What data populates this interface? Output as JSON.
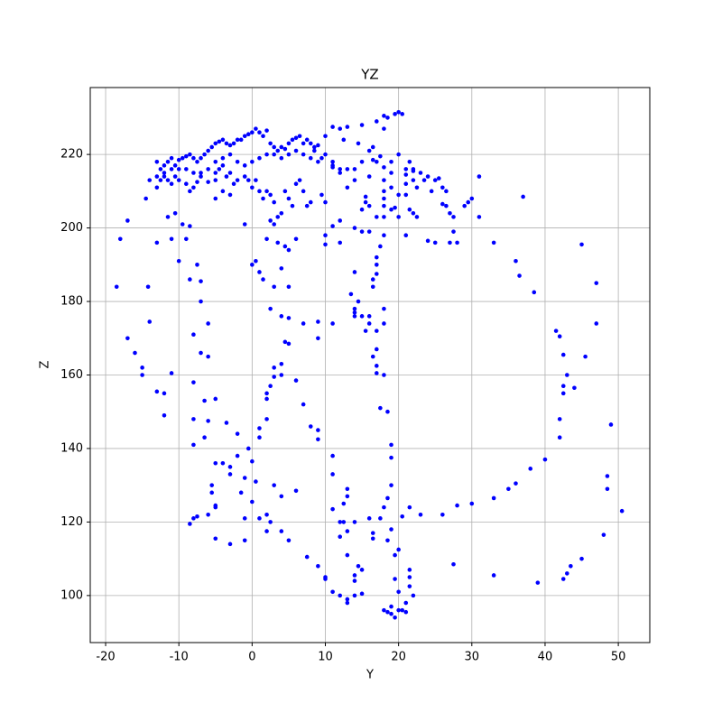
{
  "chart_data": {
    "type": "scatter",
    "title": "YZ",
    "x_label": "Y",
    "y_label": "Z",
    "color": "#0000ff",
    "grid": true,
    "xlim": [
      -22.1,
      54.3
    ],
    "ylim": [
      87.2,
      238.2
    ],
    "xticks": [
      -20,
      -10,
      0,
      10,
      20,
      30,
      40,
      50
    ],
    "yticks": [
      100,
      120,
      140,
      160,
      180,
      200,
      220
    ],
    "x": [
      -18.5,
      -18,
      -17,
      -17,
      -16,
      -15,
      -15,
      -14,
      -14.2,
      -14.5,
      -14,
      -13,
      -13,
      -12,
      -12,
      -11.5,
      -11,
      -11,
      -10.5,
      -10,
      -9.5,
      -9,
      -8.5,
      -8.5,
      -8,
      -8,
      -8,
      -8,
      -7.5,
      -7,
      -7,
      -7,
      -6.5,
      -6.5,
      -6,
      -6,
      -6,
      -5.5,
      -5.5,
      -5,
      -5,
      -5,
      -4,
      -3.5,
      -3,
      -3,
      -2,
      -2,
      -1.5,
      -1,
      -0.5,
      0,
      0,
      0.5,
      1,
      1,
      2,
      2,
      2,
      2.5,
      3,
      3,
      4,
      4,
      4.5,
      5,
      6,
      7,
      8,
      9,
      9,
      9,
      9,
      -8.5,
      -8,
      -7.5,
      -6,
      -5,
      -5,
      -3,
      -1,
      -1,
      1,
      2,
      2.5,
      2,
      3,
      4,
      4,
      5,
      6,
      7.5,
      9,
      10,
      10,
      11,
      12,
      13,
      13,
      14,
      15,
      14.5,
      15,
      14,
      14,
      13,
      12,
      13,
      12.5,
      12.5,
      13,
      13,
      12,
      11,
      11,
      11,
      14,
      16,
      16.5,
      16.5,
      17.5,
      18.5,
      19,
      19.5,
      20,
      19.5,
      20,
      21,
      21.5,
      21.5,
      21.5,
      22,
      18,
      18.5,
      19,
      19.5,
      20,
      20.5,
      21,
      19,
      20.5,
      21.5,
      23,
      26,
      28,
      30,
      33,
      35,
      36,
      38,
      40,
      33,
      27.5,
      39,
      42.5,
      43,
      43.5,
      45,
      48,
      50.5,
      48.5,
      48.5,
      49,
      47,
      47,
      45.5,
      45,
      44,
      43,
      42.5,
      42.5,
      42,
      42,
      42.5,
      42,
      41.5,
      38.5,
      36.5,
      36,
      33,
      31,
      31,
      37,
      30,
      29,
      29.5,
      27.5,
      27,
      27.5,
      27,
      26.5,
      26,
      28,
      25,
      24,
      22.5,
      21,
      21.5,
      22,
      21,
      21,
      20,
      20,
      19.5,
      18,
      18,
      17.5,
      17,
      17,
      17,
      16.5,
      16.5,
      16,
      17,
      17,
      16.5,
      17,
      17,
      17.5,
      18.5,
      18,
      18,
      18,
      19,
      19,
      19,
      18.5,
      18,
      15,
      15.5,
      16,
      14.5,
      14,
      14,
      13.5,
      14,
      14,
      12,
      11,
      11,
      10,
      9.5,
      10,
      10,
      11,
      11,
      12,
      12,
      13,
      14,
      14,
      15.5,
      15.5,
      15,
      15,
      16,
      16,
      17,
      18,
      18,
      18,
      18,
      19,
      19,
      20,
      19,
      17,
      16,
      15,
      14,
      13,
      12,
      11,
      9,
      10,
      11,
      12,
      12.5,
      13,
      14.5,
      15,
      16.5,
      17,
      18,
      18.5,
      19.5,
      20,
      20.5,
      18,
      16,
      17.5,
      16.5,
      18,
      19,
      21.5,
      22,
      22,
      21,
      22,
      22.5,
      23,
      23.5,
      24.5,
      25,
      25.5,
      26,
      26.5,
      24,
      21,
      -13,
      -12.5,
      -12,
      -12,
      -11.5,
      -11,
      -10.5,
      -10,
      -9.5,
      -9,
      -8.5,
      -8,
      -7.5,
      -7,
      -6.5,
      -6,
      -5.5,
      -5,
      -4.5,
      -4,
      -3.5,
      -3,
      -2.5,
      -2,
      -1.5,
      -1,
      -0.5,
      0,
      0.5,
      1,
      1.5,
      2,
      2.5,
      3,
      3.5,
      4,
      4.5,
      5,
      5.5,
      6,
      6.5,
      7,
      7.5,
      8,
      8.5,
      -13,
      -12.5,
      -11.5,
      -11,
      -10.5,
      -10,
      -9,
      -8.5,
      -8,
      -7.5,
      -7,
      -5,
      -4.5,
      -4,
      -3.5,
      -3,
      -2.5,
      -2,
      -1,
      -0.5,
      0,
      0.5,
      1,
      1.5,
      2,
      2.5,
      3,
      3.5,
      4,
      4.5,
      5,
      5.5,
      6,
      6.5,
      7,
      7.5,
      8,
      8,
      7,
      6,
      5,
      4,
      3,
      2,
      1,
      0,
      -1,
      -2,
      -3,
      -4,
      -5,
      -6,
      -7,
      -8,
      -9,
      -10,
      -11,
      -12,
      -13,
      0,
      0.5,
      1,
      1.5,
      2.5,
      3,
      4,
      4.5,
      5,
      5,
      3.5,
      4,
      5,
      7,
      6,
      -1,
      -3,
      -4,
      -5,
      9,
      10,
      9.5,
      8.5,
      2,
      2.5,
      3,
      -5,
      -6
    ],
    "values": [
      184,
      197,
      202,
      170,
      166,
      162,
      160,
      174.5,
      184,
      208,
      213,
      196,
      155.5,
      149,
      155,
      203,
      160.5,
      197,
      204,
      191,
      201,
      197,
      200.5,
      186,
      171,
      158,
      148,
      141,
      190,
      185.5,
      180,
      166,
      153,
      143,
      174,
      165,
      147.5,
      130,
      128,
      153.5,
      136,
      124,
      136,
      147,
      135,
      133,
      138,
      144,
      128,
      132,
      140,
      136.5,
      125.5,
      131,
      143,
      145.5,
      148,
      153.5,
      155,
      157,
      159.5,
      162,
      163,
      160,
      169,
      168.5,
      158.5,
      152,
      146,
      145,
      142.5,
      170,
      174.5,
      119.5,
      121,
      121.5,
      122,
      124.5,
      115.5,
      114,
      115,
      121,
      121,
      117.5,
      120,
      122,
      130,
      127,
      117.5,
      115,
      128.5,
      110.5,
      108,
      105,
      104.5,
      101,
      100,
      98,
      99,
      100,
      100.5,
      108,
      107,
      104,
      105.5,
      111,
      116,
      117.5,
      120,
      125,
      127,
      129,
      120,
      123.5,
      133,
      138,
      120,
      121,
      117,
      115.5,
      121,
      115,
      118,
      111,
      112.5,
      104.5,
      101,
      98,
      105,
      107,
      102.5,
      100,
      96,
      95.5,
      95,
      94,
      96,
      96,
      95.5,
      97,
      121.5,
      124,
      122,
      122,
      124.5,
      125,
      126.5,
      129,
      130.5,
      134.5,
      137,
      105.5,
      108.5,
      103.5,
      104.5,
      106,
      108,
      110,
      116.5,
      123,
      129,
      132.5,
      146.5,
      174,
      185,
      165,
      195.5,
      156.5,
      160,
      157,
      155,
      148,
      143,
      165.5,
      170.5,
      172,
      182.5,
      187,
      191,
      196,
      203,
      214,
      208.5,
      208,
      206,
      207,
      199,
      196,
      203,
      204,
      206,
      206.5,
      196,
      196,
      196.5,
      203,
      198,
      205,
      204,
      209,
      212,
      209,
      203,
      205.5,
      203,
      198,
      195,
      192,
      190,
      187.5,
      186,
      184,
      176,
      172,
      167,
      165,
      162.5,
      160.5,
      151,
      150,
      160,
      174,
      178,
      141,
      137.5,
      130,
      126.5,
      124,
      176,
      172,
      174,
      180,
      177,
      176,
      182,
      188,
      178,
      196,
      200.5,
      174,
      207,
      209,
      198,
      195.5,
      218,
      216.5,
      202,
      215,
      211,
      213,
      200,
      207,
      208.5,
      205,
      199,
      199,
      206,
      203,
      210,
      208,
      206,
      213,
      211,
      205,
      220,
      218,
      218,
      214,
      218,
      216,
      216,
      216,
      217,
      222.5,
      225,
      227.5,
      227,
      224,
      227.5,
      223,
      228,
      222,
      229,
      230.5,
      230,
      231,
      231.5,
      231,
      227,
      221,
      219.5,
      218.5,
      216.5,
      215,
      218,
      216,
      215.5,
      214.5,
      213,
      211,
      215,
      213,
      210,
      213,
      213.5,
      211,
      210,
      214,
      216,
      218,
      216,
      214,
      217,
      218,
      219,
      217,
      218.5,
      219,
      219.5,
      220,
      219,
      218,
      219,
      220,
      221,
      222,
      223,
      223.5,
      224,
      223,
      222.5,
      223,
      224,
      224,
      225,
      225.5,
      226,
      227,
      226,
      225,
      226.5,
      223,
      222,
      221,
      222,
      221.5,
      223,
      224,
      224.5,
      225,
      223,
      224,
      223,
      222,
      211,
      213,
      213,
      212,
      214,
      213,
      212,
      210,
      211,
      212.5,
      215,
      215,
      216,
      217,
      214,
      215,
      212,
      213,
      214,
      213,
      211,
      213,
      210,
      208,
      210,
      209,
      207,
      203,
      204,
      210,
      208,
      206,
      212,
      213,
      210,
      206,
      207,
      219,
      220,
      221,
      220,
      219,
      220,
      220,
      219,
      218,
      217,
      218,
      220,
      219,
      218,
      216,
      214,
      215,
      216,
      216,
      216,
      215,
      214,
      190,
      191,
      188,
      186,
      178,
      184,
      189,
      195,
      194,
      184,
      196,
      176,
      175.5,
      174,
      197,
      201,
      209,
      210,
      213,
      218,
      220,
      219,
      221,
      197,
      202,
      201,
      208,
      212.5
    ]
  }
}
